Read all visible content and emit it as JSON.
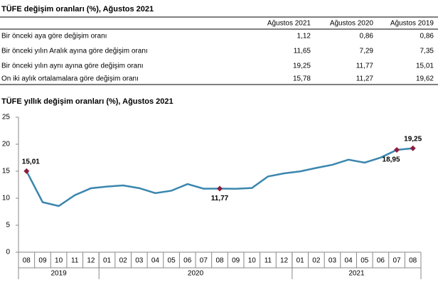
{
  "table": {
    "title": "TÜFE değişim oranları (%), Ağustos 2021",
    "columns": [
      "Ağustos 2021",
      "Ağustos 2020",
      "Ağustos 2019"
    ],
    "rows": [
      [
        "Bir önceki aya göre değişim oranı",
        "1,12",
        "0,86",
        "0,86"
      ],
      [
        "Bir önceki yılın Aralık ayına göre değişim oranı",
        "11,65",
        "7,29",
        "7,35"
      ],
      [
        "Bir önceki yılın aynı ayına göre değişim oranı",
        "19,25",
        "11,77",
        "15,01"
      ],
      [
        "On iki aylık ortalamalara göre değişim oranı",
        "15,78",
        "11,27",
        "19,62"
      ]
    ]
  },
  "chart_data": {
    "type": "line",
    "title": "TÜFE yıllık değişim oranları (%), Ağustos 2021",
    "categories": [
      "08",
      "09",
      "10",
      "11",
      "12",
      "01",
      "02",
      "03",
      "04",
      "05",
      "06",
      "07",
      "08",
      "09",
      "10",
      "11",
      "12",
      "01",
      "02",
      "03",
      "04",
      "05",
      "06",
      "07",
      "08"
    ],
    "year_labels": [
      "2019",
      "2020",
      "2021"
    ],
    "values": [
      15.01,
      9.26,
      8.55,
      10.56,
      11.84,
      12.15,
      12.37,
      11.86,
      10.94,
      11.39,
      12.62,
      11.76,
      11.77,
      11.75,
      11.89,
      14.03,
      14.6,
      14.97,
      15.61,
      16.19,
      17.14,
      16.59,
      17.53,
      18.95,
      19.25
    ],
    "value_labels": [
      "15,01",
      null,
      null,
      null,
      null,
      null,
      null,
      null,
      null,
      null,
      null,
      null,
      "11,77",
      null,
      null,
      null,
      null,
      null,
      null,
      null,
      null,
      null,
      null,
      "18,95",
      "19,25"
    ],
    "color": "#3a86ae",
    "marker_color": "#8b1d3f",
    "ylim": [
      0,
      25
    ],
    "yticks": [
      0,
      5,
      10,
      15,
      20,
      25
    ],
    "grid": false
  }
}
